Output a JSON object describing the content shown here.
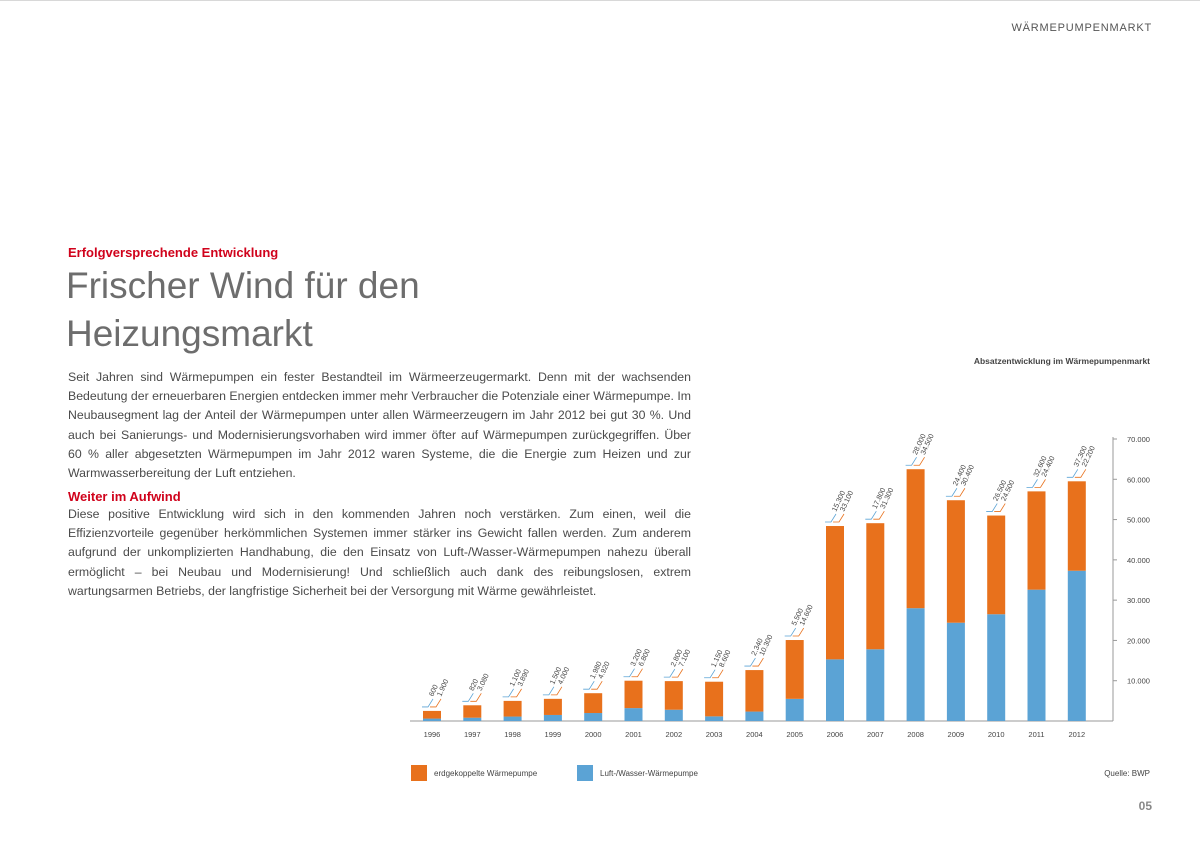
{
  "header": {
    "section": "WÄRMEPUMPENMARKT"
  },
  "article": {
    "kicker": "Erfolgversprechende Entwicklung",
    "title_line1": "Frischer Wind für den",
    "title_line2": "Heizungsmarkt",
    "paragraph1": "Seit Jahren sind Wärmepumpen ein fester Bestandteil im Wärmeerzeugermarkt. Denn mit der wachsenden Bedeutung der erneuerbaren Energien entdecken immer mehr Verbraucher die Potenziale einer Wärmepumpe. Im Neubausegment lag der Anteil der Wärmepumpen unter allen Wärmeerzeugern im Jahr 2012 bei gut 30 %. Und auch bei Sanierungs- und Modernisierungsvorhaben wird immer öfter auf Wärmepumpen zurückgegriffen. Über 60 % aller abgesetzten Wärmepumpen im Jahr 2012 waren Systeme, die die Energie zum Heizen und zur Warmwasserbereitung der Luft entziehen.",
    "subhead": "Weiter im Aufwind",
    "paragraph2": "Diese positive Entwicklung wird sich in den kommenden Jahren noch verstärken. Zum einen, weil die Effizienzvorteile gegenüber herkömmlichen Systemen immer stärker ins Gewicht fallen werden. Zum anderem aufgrund der unkomplizierten Handhabung, die den Einsatz von Luft-/Wasser-Wärmepumpen nahezu überall ermöglicht – bei Neubau und Modernisierung! Und schließlich auch dank des reibungslosen, extrem wartungsarmen Betriebs, der langfristige Sicherheit bei der Versorgung mit Wärme gewährleistet."
  },
  "chart_data": {
    "type": "bar",
    "stacked": true,
    "title": "Absatzentwicklung im Wärmepumpenmarkt",
    "categories": [
      "1996",
      "1997",
      "1998",
      "1999",
      "2000",
      "2001",
      "2002",
      "2003",
      "2004",
      "2005",
      "2006",
      "2007",
      "2008",
      "2009",
      "2010",
      "2011",
      "2012"
    ],
    "series": [
      {
        "name": "Luft-/Wasser-Wärmepumpe",
        "color": "#5ba3d5",
        "values": [
          600,
          820,
          1100,
          1500,
          1980,
          3200,
          2800,
          1150,
          2340,
          5500,
          15300,
          17800,
          28000,
          24400,
          26500,
          32600,
          37300
        ],
        "labels": [
          "600",
          "820",
          "1.100",
          "1.500",
          "1.980",
          "3.200",
          "2.800",
          "1.150",
          "2.340",
          "5.500",
          "15.300",
          "17.800",
          "28.000",
          "24.400",
          "26.500",
          "32.600",
          "37.300"
        ]
      },
      {
        "name": "erdgekoppelte Wärmepumpe",
        "color": "#e8711c",
        "values": [
          1900,
          3080,
          3890,
          4000,
          4920,
          6800,
          7100,
          8600,
          10300,
          14600,
          33100,
          31300,
          34500,
          30400,
          24500,
          24400,
          22200
        ],
        "labels": [
          "1.900",
          "3.080",
          "3.890",
          "4.000",
          "4.920",
          "6.800",
          "7.100",
          "8.600",
          "10.300",
          "14.600",
          "33.100",
          "31.300",
          "34.500",
          "30.400",
          "24.500",
          "24.400",
          "22.200"
        ]
      }
    ],
    "yaxis": {
      "min": 0,
      "max": 70000,
      "ticks": [
        "10.000",
        "20.000",
        "30.000",
        "40.000",
        "50.000",
        "60.000",
        "70.000"
      ],
      "tick_values": [
        10000,
        20000,
        30000,
        40000,
        50000,
        60000,
        70000
      ],
      "position": "right"
    },
    "legend": {
      "position": "bottom-left"
    },
    "grid": false,
    "source": "Quelle: BWP"
  },
  "footer": {
    "page_number": "05"
  }
}
